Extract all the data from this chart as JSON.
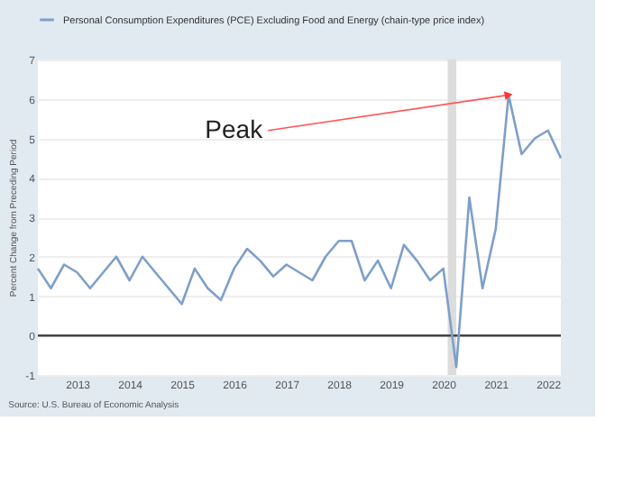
{
  "chart_data": {
    "type": "line",
    "ylabel": "Percent Change from Preceding Period",
    "x": [
      "2012-04-01",
      "2012-07-01",
      "2012-10-01",
      "2013-01-01",
      "2013-04-01",
      "2013-07-01",
      "2013-10-01",
      "2014-01-01",
      "2014-04-01",
      "2014-07-01",
      "2014-10-01",
      "2015-01-01",
      "2015-04-01",
      "2015-07-01",
      "2015-10-01",
      "2016-01-01",
      "2016-04-01",
      "2016-07-01",
      "2016-10-01",
      "2017-01-01",
      "2017-04-01",
      "2017-07-01",
      "2017-10-01",
      "2018-01-01",
      "2018-04-01",
      "2018-07-01",
      "2018-10-01",
      "2019-01-01",
      "2019-04-01",
      "2019-07-01",
      "2019-10-01",
      "2020-01-01",
      "2020-04-01",
      "2020-07-01",
      "2020-10-01",
      "2021-01-01",
      "2021-04-01",
      "2021-07-01",
      "2021-10-01",
      "2022-01-01",
      "2022-04-01"
    ],
    "series": [
      {
        "name": "Personal Consumption Expenditures (PCE) Excluding Food and Energy (chain-type price index)",
        "color": "#7e9fc9",
        "values": [
          1.7,
          1.2,
          1.8,
          1.6,
          1.2,
          1.6,
          2.0,
          1.4,
          2.0,
          1.6,
          1.2,
          0.8,
          1.7,
          1.2,
          0.9,
          1.7,
          2.2,
          1.9,
          1.5,
          1.8,
          1.6,
          1.4,
          2.0,
          2.4,
          2.4,
          1.4,
          1.9,
          1.2,
          2.3,
          1.9,
          1.4,
          1.7,
          -0.8,
          3.5,
          1.2,
          2.7,
          6.1,
          4.6,
          5.0,
          5.2,
          4.5
        ]
      }
    ],
    "xlim": [
      "2012-04-01",
      "2022-04-01"
    ],
    "xticks": [
      "2013",
      "2014",
      "2015",
      "2016",
      "2017",
      "2018",
      "2019",
      "2020",
      "2021",
      "2022"
    ],
    "ylim": [
      -1,
      7
    ],
    "yticks": [
      -1,
      0,
      1,
      2,
      3,
      4,
      5,
      6,
      7
    ],
    "grid": "y",
    "legend": "top",
    "marker": "none",
    "line_style": "solid",
    "ref_lines": [
      {
        "axis": "y",
        "value": 0,
        "color": "#444444"
      }
    ],
    "bands": [
      {
        "axis": "x",
        "from": "2020-02-01",
        "to": "2020-04-01",
        "color": "#dcdcdc"
      }
    ],
    "annotations": [
      {
        "text": "Peak",
        "x": "2021-04-01",
        "y": 6.1
      },
      "Source: U.S. Bureau of Economic Analysis"
    ]
  }
}
